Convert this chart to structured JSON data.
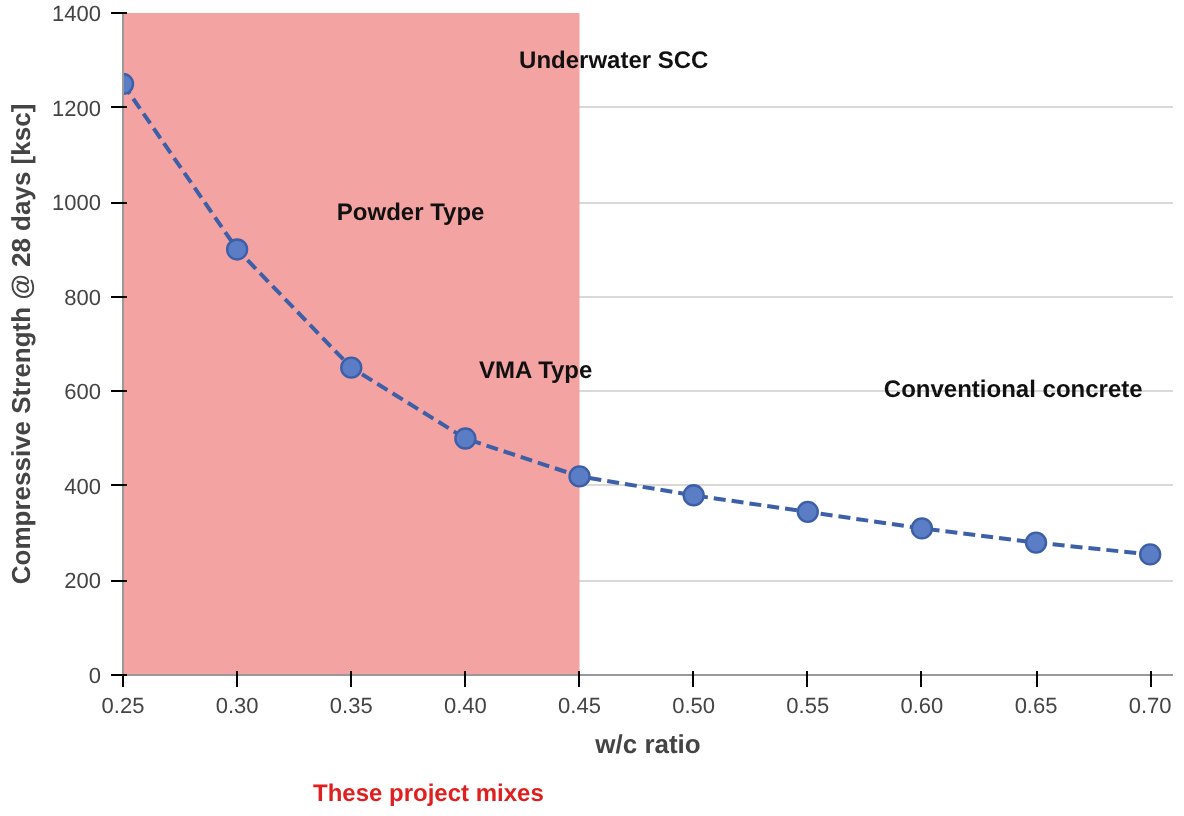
{
  "chart_data": {
    "type": "line",
    "x": [
      0.25,
      0.3,
      0.35,
      0.4,
      0.45,
      0.5,
      0.55,
      0.6,
      0.65,
      0.7
    ],
    "series": [
      {
        "color": "#3c5fa8",
        "values": [
          1250,
          900,
          650,
          500,
          420,
          380,
          345,
          310,
          280,
          255
        ]
      }
    ],
    "xlabel": "w/c ratio",
    "ylabel": "Compressive Strength @ 28 days [ksc]",
    "xlim": [
      0.25,
      0.71
    ],
    "xticks": [
      {
        "value": 0.25,
        "label": "0.25"
      },
      {
        "value": 0.3,
        "label": "0.30"
      },
      {
        "value": 0.35,
        "label": "0.35"
      },
      {
        "value": 0.4,
        "label": "0.40"
      },
      {
        "value": 0.45,
        "label": "0.45"
      },
      {
        "value": 0.5,
        "label": "0.50"
      },
      {
        "value": 0.55,
        "label": "0.55"
      },
      {
        "value": 0.6,
        "label": "0.60"
      },
      {
        "value": 0.65,
        "label": "0.65"
      },
      {
        "value": 0.7,
        "label": "0.70"
      }
    ],
    "ylim": [
      0,
      1400
    ],
    "yticks": [
      0,
      200,
      400,
      600,
      800,
      1000,
      1200,
      1400
    ],
    "grid": "y",
    "marker": "circle",
    "line_style": "dashed",
    "bands": [
      {
        "axis": "x",
        "from": 0.25,
        "to": 0.45,
        "color": "#f4a3a3"
      }
    ],
    "annotations": [
      "Underwater SCC",
      "Powder Type",
      "VMA Type",
      "Conventional concrete",
      "These project mixes"
    ]
  }
}
